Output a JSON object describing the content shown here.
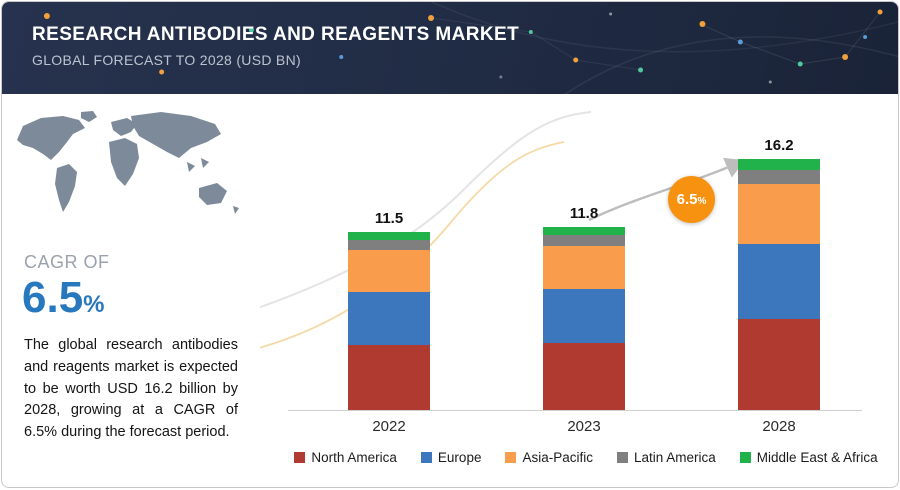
{
  "header": {
    "title": "RESEARCH ANTIBODIES AND REAGENTS MARKET",
    "subtitle": "GLOBAL FORECAST TO 2028 (USD BN)"
  },
  "sidebar": {
    "cagr_label": "CAGR OF",
    "cagr_value": "6.5",
    "cagr_percent": "%",
    "description": "The global research antibodies and reagents market is expected to be worth USD 16.2 billion by 2028, growing at a CAGR of 6.5% during the forecast period."
  },
  "badge": {
    "value": "6.5",
    "percent": "%"
  },
  "chart_data": {
    "type": "bar",
    "stacked": true,
    "title": "Research Antibodies and Reagents Market, Global Forecast to 2028 (USD BN)",
    "xlabel": "",
    "ylabel": "USD BN",
    "ylim": [
      0,
      18
    ],
    "grid": false,
    "legend_position": "bottom",
    "categories": [
      "2022",
      "2023",
      "2028"
    ],
    "totals": [
      11.5,
      11.8,
      16.2
    ],
    "cagr_percent": 6.5,
    "series": [
      {
        "name": "North America",
        "color": "#b13a30",
        "values": [
          4.2,
          4.3,
          5.9
        ]
      },
      {
        "name": "Europe",
        "color": "#3c77bd",
        "values": [
          3.4,
          3.5,
          4.8
        ]
      },
      {
        "name": "Asia-Pacific",
        "color": "#f99d4d",
        "values": [
          2.7,
          2.8,
          3.9
        ]
      },
      {
        "name": "Latin America",
        "color": "#7f7f7f",
        "values": [
          0.7,
          0.7,
          0.9
        ]
      },
      {
        "name": "Middle East & Africa",
        "color": "#21b24b",
        "values": [
          0.5,
          0.5,
          0.7
        ]
      }
    ]
  }
}
